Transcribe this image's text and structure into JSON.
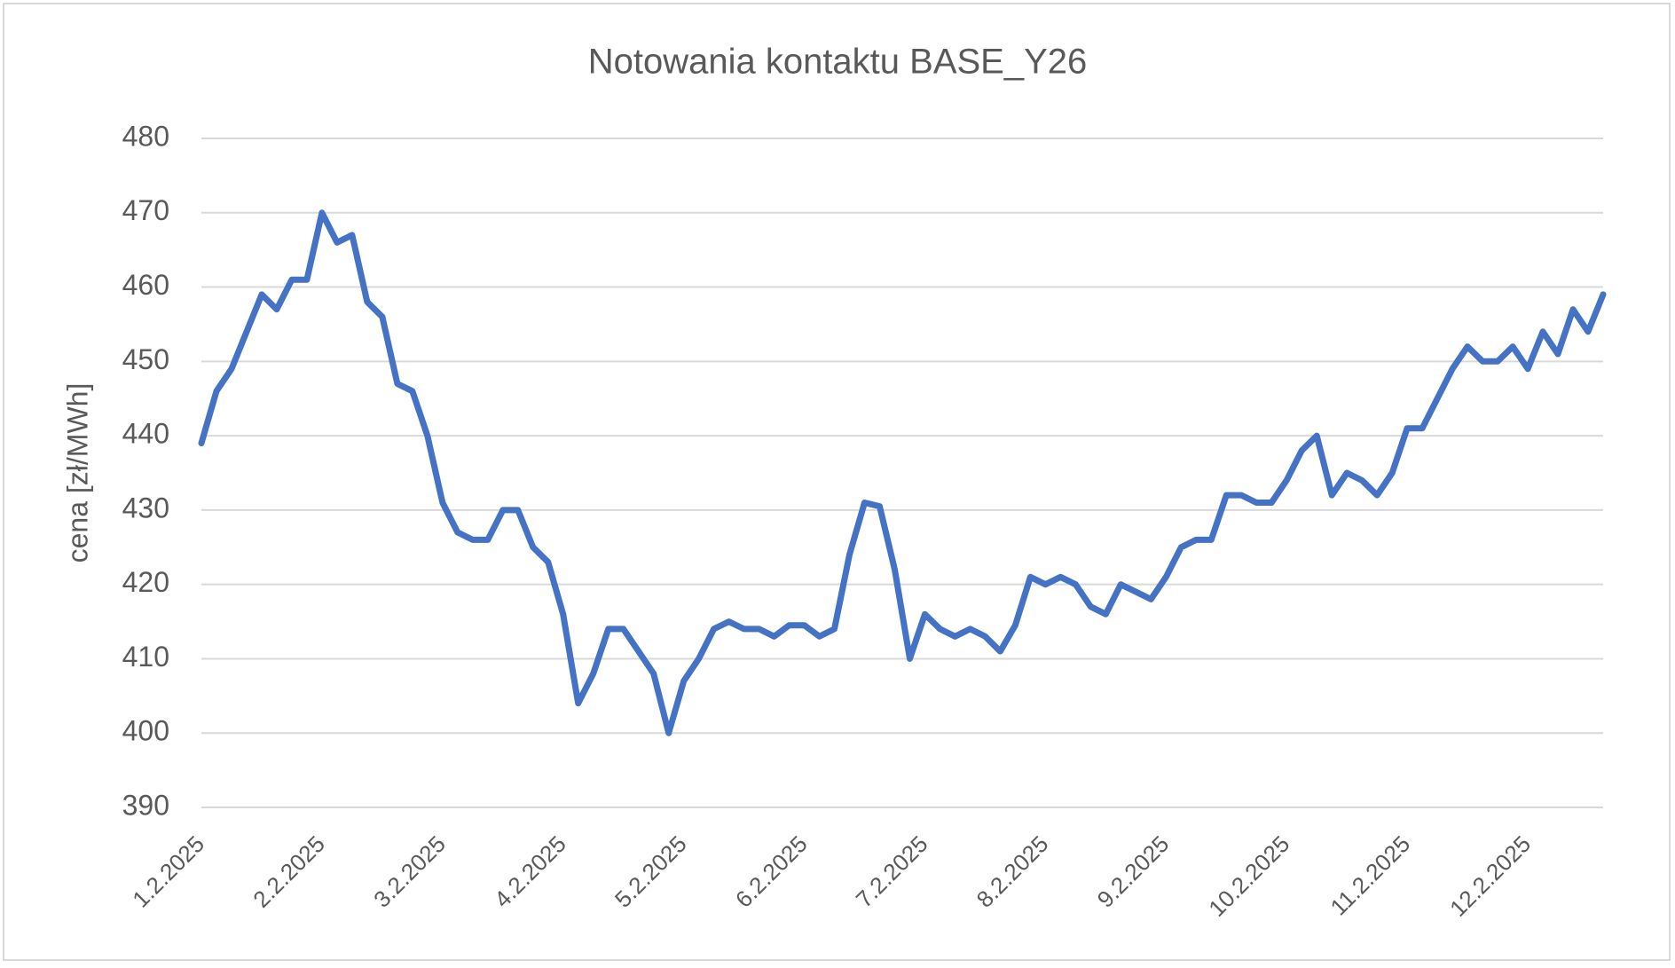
{
  "chart_data": {
    "type": "line",
    "title": "Notowania kontaktu BASE_Y26",
    "y_label": "cena [zł/MWh]",
    "categories": [
      "1.2.2025",
      null,
      null,
      null,
      null,
      null,
      null,
      null,
      "2.2.2025",
      null,
      null,
      null,
      null,
      null,
      null,
      null,
      "3.2.2025",
      null,
      null,
      null,
      null,
      null,
      null,
      null,
      "4.2.2025",
      null,
      null,
      null,
      null,
      null,
      null,
      null,
      "5.2.2025",
      null,
      null,
      null,
      null,
      null,
      null,
      null,
      "6.2.2025",
      null,
      null,
      null,
      null,
      null,
      null,
      null,
      "7.2.2025",
      null,
      null,
      null,
      null,
      null,
      null,
      null,
      "8.2.2025",
      null,
      null,
      null,
      null,
      null,
      null,
      null,
      "9.2.2025",
      null,
      null,
      null,
      null,
      null,
      null,
      null,
      "10.2.2025",
      null,
      null,
      null,
      null,
      null,
      null,
      null,
      "11.2.2025",
      null,
      null,
      null,
      null,
      null,
      null,
      null,
      "12.2.2025",
      null,
      null,
      null,
      null,
      null
    ],
    "values": [
      439,
      446,
      449,
      454,
      459,
      457,
      461,
      461,
      470,
      466,
      467,
      458,
      456,
      447,
      446,
      440,
      431,
      427,
      426,
      426,
      430,
      430,
      425,
      423,
      416,
      404,
      408,
      414,
      414,
      411,
      408,
      400,
      407,
      410,
      414,
      415,
      414,
      414,
      413,
      414.5,
      414.5,
      413,
      414,
      424,
      431,
      430.5,
      422,
      410,
      416,
      414,
      413,
      414,
      413,
      411,
      414.5,
      421,
      420,
      421,
      420,
      417,
      416,
      420,
      419,
      418,
      421,
      425,
      426,
      426,
      432,
      432,
      431,
      431,
      434,
      438,
      440,
      432,
      435,
      434,
      432,
      435,
      441,
      441,
      445,
      449,
      452,
      450,
      450,
      452,
      449,
      454,
      451,
      457,
      454,
      459
    ],
    "color": "#4472c4",
    "ylim": [
      390,
      480
    ],
    "yticks": [
      390,
      400,
      410,
      420,
      430,
      440,
      450,
      460,
      470,
      480
    ],
    "grid": true
  }
}
